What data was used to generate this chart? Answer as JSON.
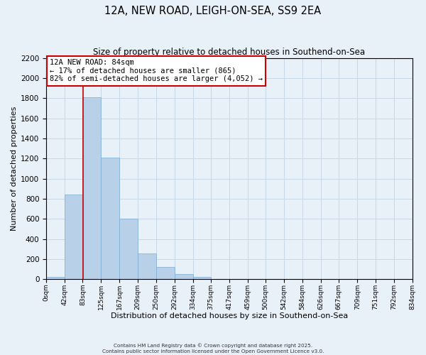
{
  "title": "12A, NEW ROAD, LEIGH-ON-SEA, SS9 2EA",
  "subtitle": "Size of property relative to detached houses in Southend-on-Sea",
  "xlabel": "Distribution of detached houses by size in Southend-on-Sea",
  "ylabel": "Number of detached properties",
  "bar_left_edges": [
    0,
    42,
    83,
    125,
    167,
    209,
    250,
    292,
    334,
    375,
    417,
    459,
    500,
    542,
    584,
    626,
    667,
    709,
    751,
    792
  ],
  "bar_widths": [
    42,
    41,
    42,
    42,
    42,
    41,
    42,
    42,
    41,
    42,
    42,
    41,
    42,
    42,
    42,
    41,
    42,
    42,
    41,
    42
  ],
  "bar_heights": [
    25,
    840,
    1810,
    1210,
    600,
    255,
    125,
    50,
    25,
    5,
    2,
    1,
    0,
    0,
    0,
    0,
    0,
    0,
    0,
    0
  ],
  "bar_color": "#b8d0e8",
  "bar_edgecolor": "#7aadd4",
  "tick_labels": [
    "0sqm",
    "42sqm",
    "83sqm",
    "125sqm",
    "167sqm",
    "209sqm",
    "250sqm",
    "292sqm",
    "334sqm",
    "375sqm",
    "417sqm",
    "459sqm",
    "500sqm",
    "542sqm",
    "584sqm",
    "626sqm",
    "667sqm",
    "709sqm",
    "751sqm",
    "792sqm",
    "834sqm"
  ],
  "red_line_x": 84,
  "annotation_line1": "12A NEW ROAD: 84sqm",
  "annotation_line2": "← 17% of detached houses are smaller (865)",
  "annotation_line3": "82% of semi-detached houses are larger (4,052) →",
  "annotation_box_color": "#ffffff",
  "annotation_box_edgecolor": "#cc0000",
  "ylim": [
    0,
    2200
  ],
  "yticks": [
    0,
    200,
    400,
    600,
    800,
    1000,
    1200,
    1400,
    1600,
    1800,
    2000,
    2200
  ],
  "grid_color": "#c8d8e8",
  "background_color": "#e8f0f8",
  "footer_line1": "Contains HM Land Registry data © Crown copyright and database right 2025.",
  "footer_line2": "Contains public sector information licensed under the Open Government Licence v3.0."
}
